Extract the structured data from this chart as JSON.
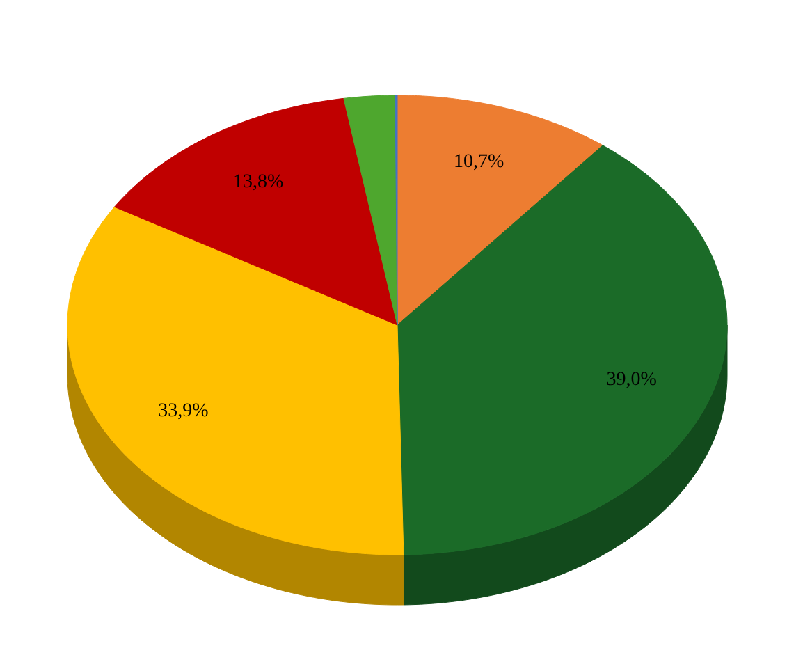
{
  "chart_data": {
    "type": "pie",
    "categories": [
      null,
      null,
      null,
      null,
      null,
      null
    ],
    "values": [
      10.7,
      39.0,
      33.9,
      13.8,
      2.5,
      0.1
    ],
    "colors": [
      "#ed7d31",
      "#1b6b28",
      "#ffc000",
      "#c00000",
      "#4ea72e",
      "#4472c4"
    ],
    "value_labels": [
      "10,7%",
      "39,0%",
      "33,9%",
      "13,8%",
      null,
      null
    ]
  }
}
